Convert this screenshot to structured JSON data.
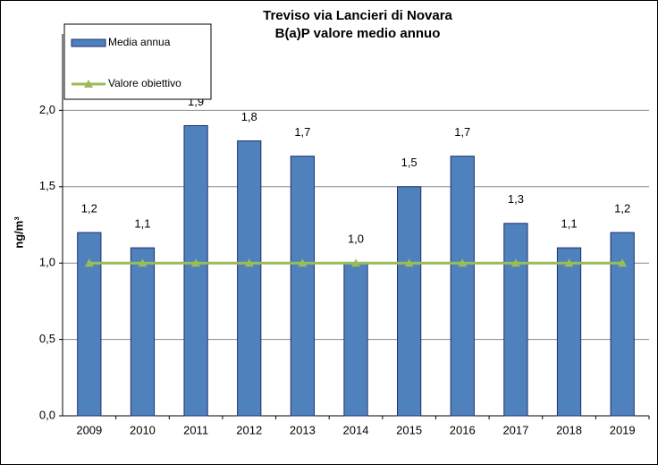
{
  "chart_data": {
    "type": "bar",
    "title": "Treviso via Lancieri di Novara",
    "subtitle": "B(a)P valore medio annuo",
    "y_label": "ng/m³",
    "categories": [
      "2009",
      "2010",
      "2011",
      "2012",
      "2013",
      "2014",
      "2015",
      "2016",
      "2017",
      "2018",
      "2019"
    ],
    "series": [
      {
        "name": "Media annua",
        "type": "bar",
        "color": "#4f81bd",
        "values": [
          1.2,
          1.1,
          1.9,
          1.8,
          1.7,
          1.0,
          1.5,
          1.7,
          1.26,
          1.1,
          1.2
        ],
        "value_labels": [
          "1,2",
          "1,1",
          "1,9",
          "1,8",
          "1,7",
          "1,0",
          "1,5",
          "1,7",
          "1,3",
          "1,1",
          "1,2"
        ]
      },
      {
        "name": "Valore obiettivo",
        "type": "line",
        "color": "#9bbb59",
        "values": [
          1.0,
          1.0,
          1.0,
          1.0,
          1.0,
          1.0,
          1.0,
          1.0,
          1.0,
          1.0,
          1.0
        ]
      }
    ],
    "ylim": [
      0,
      2.5
    ],
    "yticks": [
      {
        "value": 0,
        "label": "0,0"
      },
      {
        "value": 0.5,
        "label": "0,5"
      },
      {
        "value": 1.0,
        "label": "1,0"
      },
      {
        "value": 1.5,
        "label": "1,5"
      },
      {
        "value": 2.0,
        "label": "2,0"
      }
    ],
    "grid": true
  }
}
